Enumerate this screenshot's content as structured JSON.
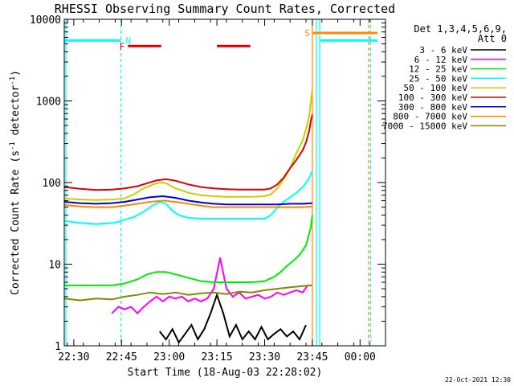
{
  "chart_data": {
    "type": "line",
    "title": "RHESSI Observing Summary Count Rates, Corrected",
    "xlabel": "Start Time (18-Aug-03 22:28:02)",
    "ylabel": "Corrected Count Rate (s",
    "ylabel_sup": "-1",
    "ylabel_tail": " detector",
    "ylabel_close": ")",
    "yscale": "log",
    "xlim_minutes": [
      -1,
      100
    ],
    "ylim": [
      1,
      10000
    ],
    "x_ticks": [
      {
        "m": 2,
        "label": "22:30"
      },
      {
        "m": 17,
        "label": "22:45"
      },
      {
        "m": 32,
        "label": "23:00"
      },
      {
        "m": 47,
        "label": "23:15"
      },
      {
        "m": 62,
        "label": "23:30"
      },
      {
        "m": 77,
        "label": "23:45"
      },
      {
        "m": 92,
        "label": "00:00"
      }
    ],
    "y_ticks": [
      {
        "v": 1,
        "label": "1"
      },
      {
        "v": 10,
        "label": "10"
      },
      {
        "v": 100,
        "label": "100"
      },
      {
        "v": 1000,
        "label": "1000"
      },
      {
        "v": 10000,
        "label": "10000"
      }
    ],
    "legend": {
      "header": [
        "Det 1,3,4,5,6,9,",
        "Att 0"
      ],
      "entries": [
        {
          "label": "3 - 6 keV",
          "color": "#000000"
        },
        {
          "label": "6 - 12 keV",
          "color": "#ff00ff"
        },
        {
          "label": "12 - 25 keV",
          "color": "#00ee00"
        },
        {
          "label": "25 - 50 keV",
          "color": "#00ffff"
        },
        {
          "label": "50 - 100 keV",
          "color": "#cccc00"
        },
        {
          "label": "100 - 300 keV",
          "color": "#dd0000"
        },
        {
          "label": "300 - 800 keV",
          "color": "#0000dd"
        },
        {
          "label": "800 - 7000 keV",
          "color": "#ff8800"
        },
        {
          "label": "7000 - 15000 keV",
          "color": "#888800"
        }
      ]
    },
    "series": [
      {
        "name": "3 - 6 keV",
        "color": "#000000",
        "x": [
          29,
          31,
          33,
          35,
          37,
          39,
          41,
          43,
          45,
          47,
          49,
          51,
          53,
          55,
          57,
          59,
          61,
          63,
          65,
          67,
          69,
          71,
          73,
          75
        ],
        "values": [
          1.5,
          1.2,
          1.6,
          1.1,
          1.4,
          1.8,
          1.2,
          1.6,
          2.5,
          4.2,
          2.5,
          1.3,
          1.8,
          1.2,
          1.5,
          1.2,
          1.7,
          1.2,
          1.4,
          1.6,
          1.3,
          1.5,
          1.2,
          1.8
        ]
      },
      {
        "name": "6 - 12 keV",
        "color": "#ff00ff",
        "x": [
          14,
          16,
          18,
          20,
          22,
          24,
          26,
          28,
          30,
          32,
          34,
          36,
          38,
          40,
          42,
          44,
          46,
          48,
          50,
          52,
          54,
          56,
          58,
          60,
          62,
          64,
          66,
          68,
          70,
          72,
          74,
          75.5
        ],
        "values": [
          2.5,
          3,
          2.8,
          3,
          2.5,
          3,
          3.5,
          4,
          3.5,
          4,
          3.8,
          4,
          3.5,
          3.8,
          3.5,
          3.8,
          5,
          12,
          5,
          4,
          4.5,
          3.8,
          4,
          4.2,
          3.8,
          4,
          4.5,
          4.2,
          4.5,
          4.8,
          4.5,
          5.5
        ]
      },
      {
        "name": "12 - 25 keV",
        "color": "#00ee00",
        "x": [
          -1,
          4,
          9,
          14,
          18,
          22,
          25,
          28,
          31,
          34,
          38,
          42,
          46,
          50,
          54,
          58,
          62,
          65,
          67,
          69,
          71,
          73,
          75,
          76.5,
          77
        ],
        "values": [
          5.5,
          5.5,
          5.5,
          5.5,
          5.8,
          6.5,
          7.5,
          8,
          8,
          7.5,
          6.8,
          6.2,
          6,
          6,
          6,
          6,
          6.2,
          7,
          8,
          9.5,
          11,
          13,
          17,
          28,
          40
        ]
      },
      {
        "name": "25 - 50 keV",
        "color": "#00ffff",
        "x": [
          -1,
          4,
          9,
          14,
          16,
          18,
          21,
          24,
          27,
          29,
          31,
          33,
          35,
          38,
          42,
          46,
          50,
          54,
          58,
          62,
          64,
          66,
          68,
          70,
          72,
          74,
          75.5,
          76.5,
          77
        ],
        "values": [
          34,
          32,
          31,
          32,
          33,
          35,
          38,
          44,
          53,
          58,
          55,
          45,
          40,
          37,
          36,
          36,
          36,
          36,
          36,
          36,
          40,
          49,
          58,
          66,
          75,
          88,
          105,
          125,
          140
        ]
      },
      {
        "name": "50 - 100 keV",
        "color": "#cccc00",
        "x": [
          -1,
          4,
          9,
          14,
          18,
          21,
          24,
          27,
          29,
          31,
          34,
          38,
          42,
          46,
          50,
          54,
          58,
          62,
          64,
          66,
          68,
          70,
          72,
          74,
          75,
          76,
          76.5,
          77
        ],
        "values": [
          64,
          62,
          61,
          62,
          64,
          72,
          85,
          95,
          100,
          98,
          85,
          75,
          70,
          68,
          67,
          67,
          67,
          68,
          72,
          85,
          110,
          150,
          230,
          330,
          450,
          650,
          950,
          1400
        ]
      },
      {
        "name": "100 - 300 keV",
        "color": "#dd0000",
        "x": [
          -1,
          4,
          9,
          14,
          18,
          22,
          25,
          28,
          31,
          34,
          38,
          42,
          46,
          50,
          54,
          58,
          62,
          64,
          66,
          68,
          70,
          72,
          74,
          75,
          76,
          76.5,
          77
        ],
        "values": [
          88,
          84,
          81,
          82,
          85,
          90,
          98,
          106,
          110,
          105,
          95,
          88,
          85,
          83,
          82,
          82,
          82,
          85,
          95,
          115,
          150,
          190,
          250,
          310,
          430,
          560,
          680
        ]
      },
      {
        "name": "300 - 800 keV",
        "color": "#0000dd",
        "x": [
          -1,
          4,
          9,
          14,
          18,
          22,
          26,
          30,
          34,
          38,
          42,
          46,
          50,
          54,
          58,
          62,
          66,
          70,
          74,
          77
        ],
        "values": [
          58,
          56,
          55,
          56,
          58,
          62,
          66,
          68,
          65,
          60,
          57,
          55,
          54,
          54,
          54,
          54,
          54,
          55,
          55,
          56
        ]
      },
      {
        "name": "800 - 7000 keV",
        "color": "#ff8800",
        "x": [
          -1,
          4,
          9,
          14,
          18,
          22,
          26,
          30,
          34,
          38,
          42,
          46,
          50,
          54,
          58,
          62,
          66,
          70,
          74,
          77
        ],
        "values": [
          53,
          51,
          50,
          50,
          52,
          55,
          58,
          60,
          58,
          55,
          52,
          50,
          50,
          50,
          50,
          50,
          50,
          50,
          50,
          51
        ]
      },
      {
        "name": "7000 - 15000 keV",
        "color": "#888800",
        "x": [
          -1,
          4,
          9,
          14,
          18,
          22,
          26,
          30,
          34,
          38,
          42,
          46,
          50,
          54,
          58,
          62,
          66,
          70,
          74,
          77
        ],
        "values": [
          3.8,
          3.6,
          3.8,
          3.7,
          4,
          4.2,
          4.5,
          4.3,
          4.5,
          4.2,
          4.4,
          4.5,
          4.3,
          4.6,
          4.5,
          4.8,
          5,
          5.2,
          5.4,
          5.5
        ]
      }
    ],
    "flags": [
      {
        "label": "N",
        "color": "#00ffff",
        "segments": [
          [
            -1,
            16.8
          ]
        ],
        "value": 5500
      },
      {
        "label": "F",
        "color": "#dd0000",
        "segments": [
          [
            19,
            29.5
          ],
          [
            47,
            57.5
          ]
        ],
        "value": 4700
      },
      {
        "label": "S",
        "color": "#ff8800",
        "segments": [
          [
            77.2,
            97.5
          ]
        ],
        "value": 6800
      },
      {
        "label": "",
        "color": "#00ffff",
        "segments": [
          [
            79.5,
            97.5
          ]
        ],
        "value": 5500
      }
    ],
    "vlines": [
      {
        "m": -0.5,
        "color": "#00ffff",
        "dash": false
      },
      {
        "m": 16.8,
        "color": "#00ffff",
        "dash": true
      },
      {
        "m": 77,
        "color": "#ff8800",
        "dash": false
      },
      {
        "m": 78.3,
        "color": "#00ffff",
        "dash": false
      },
      {
        "m": 79.3,
        "color": "#00ffff",
        "dash": false
      },
      {
        "m": 94.7,
        "color": "#ff8800",
        "dash": true
      },
      {
        "m": 95.3,
        "color": "#00ffff",
        "dash": true
      }
    ]
  },
  "footer": {
    "timestamp": "22-Oct-2021 12:30"
  }
}
